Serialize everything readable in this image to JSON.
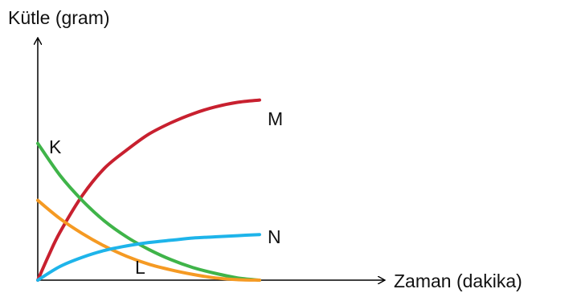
{
  "chart_data": {
    "type": "line",
    "xlabel": "Zaman (dakika)",
    "ylabel": "Kütle (gram)",
    "grid": false,
    "legend": "none",
    "xlim": [
      0,
      10
    ],
    "ylim": [
      0,
      10
    ],
    "axis_color": "#000000",
    "series": [
      {
        "name": "M",
        "color": "#c8202f",
        "x": [
          0,
          0.5,
          1,
          2,
          3,
          4,
          5,
          6,
          7,
          8,
          9,
          10
        ],
        "y": [
          0,
          1.1,
          2.1,
          3.7,
          4.9,
          5.7,
          6.4,
          6.9,
          7.3,
          7.6,
          7.8,
          7.9
        ]
      },
      {
        "name": "K",
        "color": "#3fb449",
        "x": [
          0,
          1,
          2,
          3,
          4,
          5,
          6,
          7,
          8,
          9,
          10
        ],
        "y": [
          6.0,
          4.6,
          3.5,
          2.6,
          1.9,
          1.35,
          0.9,
          0.55,
          0.3,
          0.1,
          0
        ]
      },
      {
        "name": "L",
        "color": "#f59a23",
        "x": [
          0,
          1,
          2,
          3,
          4,
          5,
          6,
          7,
          8,
          9,
          10
        ],
        "y": [
          3.5,
          2.7,
          2.05,
          1.5,
          1.05,
          0.7,
          0.45,
          0.25,
          0.1,
          0.02,
          0
        ]
      },
      {
        "name": "N",
        "color": "#1eb4ea",
        "x": [
          0,
          1,
          2,
          3,
          4,
          5,
          6,
          7,
          8,
          9,
          10
        ],
        "y": [
          0,
          0.6,
          1.0,
          1.3,
          1.5,
          1.65,
          1.75,
          1.85,
          1.9,
          1.95,
          2.0
        ]
      }
    ]
  }
}
